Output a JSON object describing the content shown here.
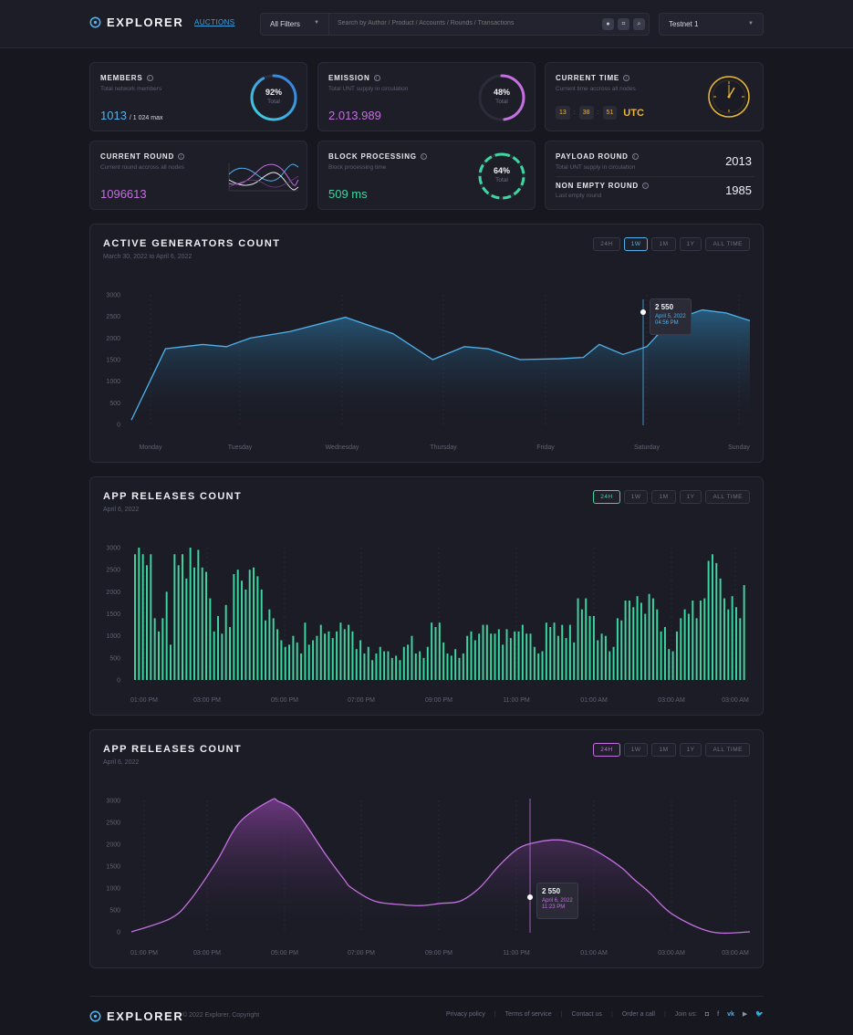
{
  "header": {
    "brand": "EXPLORER",
    "nav_auctions": "AUCTIONS",
    "filter": "All Filters",
    "search_placeholder": "Search by Author / Product / Accounts / Rounds / Transactions",
    "network": "Testnet 1"
  },
  "stats": {
    "members": {
      "title": "MEMBERS",
      "sub": "Total network members",
      "value": "1013",
      "max": "/ 1 024 max",
      "percent": 92,
      "pct_label": "92%",
      "total": "Total"
    },
    "emission": {
      "title": "EMISSION",
      "sub": "Total UNT supply in circulation",
      "value": "2.013.989",
      "percent": 48,
      "pct_label": "48%",
      "total": "Total"
    },
    "time": {
      "title": "CURRENT TIME",
      "sub": "Current time accross all nodes",
      "h": "13",
      "m": "38",
      "s": "51",
      "tz": "UTC"
    },
    "round": {
      "title": "CURRENT ROUND",
      "sub": "Current round accross all nodes",
      "value": "1096613"
    },
    "block": {
      "title": "BLOCK PROCESSING",
      "sub": "Block processing time",
      "value": "509 ms",
      "percent": 64,
      "pct_label": "64%",
      "total": "Total"
    },
    "payload": {
      "title": "PAYLOAD ROUND",
      "sub": "Total UNT supply in circulation",
      "value": "2013"
    },
    "nonempty": {
      "title": "NON EMPTY ROUND",
      "sub": "Last empty round",
      "value": "1985"
    }
  },
  "ranges": [
    "24H",
    "1W",
    "1M",
    "1Y",
    "ALL TIME"
  ],
  "colors": {
    "blue": "#4fb2ec",
    "purple": "#c470e0",
    "green": "#3ed6a0",
    "gold": "#e8b638"
  },
  "panels": {
    "generators": {
      "title": "ACTIVE GENERATORS COUNT",
      "sub": "March 30, 2022 to April 6, 2022",
      "active_range": "1W",
      "tooltip_value": "2 550",
      "tooltip_date": "April 5, 2022",
      "tooltip_time": "04:56 PM"
    },
    "releases_bar": {
      "title": "APP RELEASES COUNT",
      "sub": "April 6, 2022",
      "active_range": "24H"
    },
    "releases_curve": {
      "title": "APP RELEASES COUNT",
      "sub": "April 6, 2022",
      "active_range": "24H",
      "tooltip_value": "2 550",
      "tooltip_date": "April 6, 2022",
      "tooltip_time": "11:23 PM"
    }
  },
  "chart_data": [
    {
      "type": "area",
      "title": "ACTIVE GENERATORS COUNT",
      "ylim": [
        0,
        3000
      ],
      "yticks": [
        0,
        500,
        1000,
        1500,
        2000,
        2500,
        3000
      ],
      "xticks": [
        "Monday",
        "Tuesday",
        "Wednesday",
        "Thursday",
        "Friday",
        "Saturday",
        "Sunday"
      ],
      "x": [
        0,
        0.43,
        0.9,
        1.2,
        1.5,
        2.0,
        2.7,
        3.3,
        3.8,
        4.2,
        4.5,
        4.9,
        5.4,
        5.7,
        5.9,
        6.2,
        6.5,
        6.8,
        7.2,
        7.5,
        7.8
      ],
      "values": [
        100,
        1750,
        1850,
        1800,
        2000,
        2150,
        2480,
        2100,
        1500,
        1800,
        1750,
        1500,
        1520,
        1550,
        1850,
        1620,
        1800,
        2400,
        2650,
        2580,
        2400
      ]
    },
    {
      "type": "bar",
      "title": "APP RELEASES COUNT",
      "ylim": [
        0,
        3000
      ],
      "yticks": [
        0,
        500,
        1000,
        1500,
        2000,
        2500,
        3000
      ],
      "xticks": [
        "01:00 PM",
        "03:00 PM",
        "05:00 PM",
        "07:00 PM",
        "09:00 PM",
        "11:00 PM",
        "01:00 AM",
        "03:00 AM",
        "03:00 AM"
      ],
      "values": [
        2850,
        3000,
        2850,
        2600,
        2850,
        1400,
        1100,
        1400,
        2000,
        800,
        2850,
        2600,
        2850,
        2300,
        3000,
        2550,
        2950,
        2550,
        2450,
        1850,
        1100,
        1450,
        1050,
        1700,
        1200,
        2400,
        2500,
        2250,
        2050,
        2500,
        2550,
        2350,
        2050,
        1350,
        1600,
        1400,
        1150,
        900,
        750,
        800,
        1000,
        850,
        600,
        1300,
        800,
        900,
        1000,
        1250,
        1050,
        1100,
        950,
        1100,
        1300,
        1150,
        1250,
        1100,
        700,
        900,
        600,
        750,
        450,
        600,
        750,
        650,
        650,
        500,
        550,
        450,
        750,
        800,
        1000,
        600,
        650,
        500,
        750,
        1300,
        1200,
        1300,
        850,
        600,
        550,
        700,
        500,
        600,
        1000,
        1100,
        900,
        1050,
        1250,
        1250,
        1050,
        1050,
        1150,
        800,
        1150,
        950,
        1100,
        1100,
        1250,
        1050,
        1050,
        750,
        600,
        650,
        1300,
        1200,
        1300,
        1000,
        1250,
        950,
        1250,
        850,
        1850,
        1600,
        1850,
        1450,
        1450,
        900,
        1050,
        1000,
        650,
        750,
        1400,
        1350,
        1800,
        1800,
        1650,
        1900,
        1750,
        1500,
        1950,
        1850,
        1600,
        1100,
        1200,
        700,
        650,
        1100,
        1400,
        1600,
        1500,
        1800,
        1400,
        1800,
        1850,
        2700,
        2850,
        2650,
        2300,
        1850,
        1600,
        1900,
        1650,
        1400,
        2150
      ]
    },
    {
      "type": "area",
      "title": "APP RELEASES COUNT",
      "ylim": [
        0,
        3000
      ],
      "yticks": [
        0,
        500,
        1000,
        1500,
        2000,
        2500,
        3000
      ],
      "xticks": [
        "01:00 PM",
        "03:00 PM",
        "05:00 PM",
        "07:00 PM",
        "09:00 PM",
        "11:00 PM",
        "01:00 AM",
        "03:00 AM",
        "03:00 AM"
      ],
      "x": [
        0,
        1.0,
        1.5,
        2.2,
        2.8,
        3.6,
        3.8,
        4.3,
        5.0,
        5.5,
        5.7,
        6.3,
        7.0,
        7.5,
        8.0,
        8.5,
        9.0,
        9.5,
        10.0,
        10.5,
        11.0,
        11.4,
        11.9,
        12.3,
        12.7,
        13.0,
        13.4,
        14.0,
        15.0,
        16.0
      ],
      "values": [
        0,
        300,
        700,
        1600,
        2500,
        3000,
        2980,
        2700,
        1800,
        1200,
        1000,
        700,
        620,
        600,
        650,
        700,
        1000,
        1500,
        1900,
        2050,
        2100,
        2050,
        1900,
        1700,
        1450,
        1200,
        900,
        400,
        0,
        0
      ]
    }
  ]
}
